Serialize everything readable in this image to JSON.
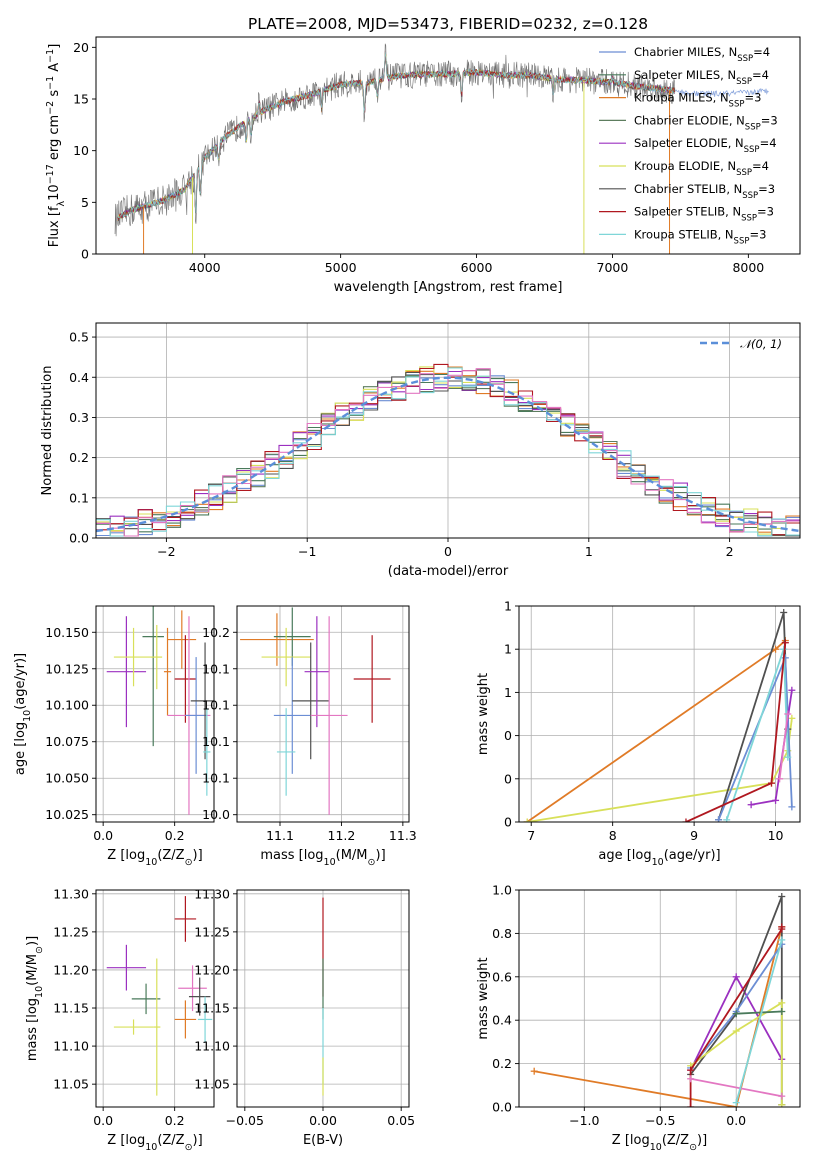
{
  "figure": {
    "title": "PLATE=2008, MJD=53473, FIBERID=0232, z=0.128"
  },
  "chart_data": [
    {
      "id": "spectrum",
      "type": "line",
      "xlabel": "wavelength [Angstrom, rest frame]",
      "ylabel": "Flux [f",
      "ylabel_parts": {
        "a": "Flux [f",
        "sub": "λ",
        "b": "10",
        "sup1": "−17",
        "c": " erg cm",
        "sup2": "−2",
        "d": " s",
        "sup3": "−1",
        "e": " A",
        "sup4": "−1",
        "f": "]"
      },
      "xlim": [
        3200,
        8380
      ],
      "ylim": [
        0,
        21
      ],
      "xticks": [
        4000,
        5000,
        6000,
        7000,
        8000
      ],
      "yticks": [
        0,
        5,
        10,
        15,
        20
      ],
      "legend_position": "right",
      "observed_envelope": {
        "wavelength": [
          3340,
          3450,
          3550,
          3700,
          3850,
          4000,
          4150,
          4300,
          4450,
          4600,
          4800,
          5000,
          5200,
          5400,
          5600,
          5800,
          6000,
          6200,
          6400,
          6600,
          6800,
          7000,
          7200,
          7400,
          7600,
          7800,
          8000,
          8150
        ],
        "flux": [
          3.3,
          4.2,
          4.6,
          5.2,
          6.2,
          9.3,
          11.3,
          12.8,
          14.0,
          14.8,
          15.5,
          16.4,
          16.6,
          17.2,
          17.4,
          17.4,
          17.6,
          17.3,
          17.3,
          16.9,
          16.8,
          16.6,
          16.2,
          15.9,
          15.5,
          15.5,
          15.6,
          15.8
        ]
      },
      "models": [
        {
          "name": "Chabrier MILES",
          "n_ssp": "4",
          "color": "#6c8ed4"
        },
        {
          "name": "Salpeter MILES",
          "n_ssp": "4",
          "color": "#4a7a5b"
        },
        {
          "name": "Kroupa MILES",
          "n_ssp": "3",
          "color": "#e07b27"
        },
        {
          "name": "Chabrier ELODIE",
          "n_ssp": "3",
          "color": "#5d7d5f"
        },
        {
          "name": "Salpeter ELODIE",
          "n_ssp": "4",
          "color": "#9b30c0"
        },
        {
          "name": "Kroupa ELODIE",
          "n_ssp": "4",
          "color": "#d8e05a"
        },
        {
          "name": "Chabrier STELIB",
          "n_ssp": "3",
          "color": "#505050"
        },
        {
          "name": "Salpeter STELIB",
          "n_ssp": "3",
          "color": "#b01820"
        },
        {
          "name": "Kroupa STELIB",
          "n_ssp": "3",
          "color": "#7fd6d8"
        }
      ],
      "legend_ssp_label": "N",
      "legend_ssp_sub": "SSP"
    },
    {
      "id": "residuals",
      "type": "histogram",
      "xlabel": "(data-model)/error",
      "ylabel": "Normed distribution",
      "xlim": [
        -2.5,
        2.5
      ],
      "ylim": [
        0,
        0.535
      ],
      "xticks": [
        -2,
        -1,
        0,
        1,
        2
      ],
      "yticks": [
        0.0,
        0.1,
        0.2,
        0.3,
        0.4,
        0.5
      ],
      "bin_width": 0.1,
      "reference": {
        "label": "𝒩(0, 1)",
        "mean": 0,
        "sigma": 1,
        "color": "#5b8fd9"
      },
      "legend_position": "top-right"
    },
    {
      "id": "age_vs_Z",
      "type": "errorbar",
      "xlabel": "Z [log",
      "xlabel_parts": {
        "a": "Z [log",
        "sub": "10",
        "b": "(Z/Z",
        "sub2": "⊙",
        "c": ")]"
      },
      "ylabel_parts": {
        "a": "age  [log",
        "sub": "10",
        "b": "(age/yr)]"
      },
      "xlim": [
        -0.02,
        0.31
      ],
      "ylim": [
        10.02,
        10.168
      ],
      "xticks": [
        0.0,
        0.2
      ],
      "yticks": [
        10.025,
        10.05,
        10.075,
        10.1,
        10.125,
        10.15
      ],
      "points": [
        {
          "x": 0.065,
          "y": 10.123,
          "xerr": 0.055,
          "yerr": 0.038,
          "color": "#9b30c0"
        },
        {
          "x": 0.085,
          "y": 10.133,
          "xerr": 0.055,
          "yerr": 0.02,
          "color": "#d8e05a"
        },
        {
          "x": 0.14,
          "y": 10.147,
          "xerr": 0.03,
          "yerr": 0.075,
          "color": "#4a7a5b"
        },
        {
          "x": 0.15,
          "y": 10.133,
          "xerr": 0.015,
          "yerr": 0.022,
          "color": "#d8e05a"
        },
        {
          "x": 0.18,
          "y": 10.123,
          "xerr": 0.01,
          "yerr": 0.03,
          "color": "#e07b27"
        },
        {
          "x": 0.22,
          "y": 10.145,
          "xerr": 0.04,
          "yerr": 0.02,
          "color": "#e07b27"
        },
        {
          "x": 0.23,
          "y": 10.118,
          "xerr": 0.03,
          "yerr": 0.03,
          "color": "#b01820"
        },
        {
          "x": 0.24,
          "y": 10.093,
          "xerr": 0.06,
          "yerr": 0.068,
          "color": "#e377c2"
        },
        {
          "x": 0.26,
          "y": 10.093,
          "xerr": 0.03,
          "yerr": 0.04,
          "color": "#6c8ed4"
        },
        {
          "x": 0.285,
          "y": 10.103,
          "xerr": 0.04,
          "yerr": 0.04,
          "color": "#505050"
        },
        {
          "x": 0.29,
          "y": 10.068,
          "xerr": 0.01,
          "yerr": 0.03,
          "color": "#7fd6d8"
        }
      ]
    },
    {
      "id": "age_vs_mass",
      "type": "errorbar",
      "xlabel_parts": {
        "a": "mass [log",
        "sub": "10",
        "b": "(M/M",
        "sub2": "⊙",
        "c": ")]"
      },
      "xlim": [
        11.03,
        11.31
      ],
      "ylim": [
        10.02,
        10.168
      ],
      "xticks": [
        11.1,
        11.2,
        11.3
      ],
      "yticks": [
        10.025,
        10.05,
        10.075,
        10.1,
        10.125,
        10.15
      ],
      "points": [
        {
          "x": 11.095,
          "y": 10.145,
          "xerr": 0.06,
          "yerr": 0.018,
          "color": "#e07b27"
        },
        {
          "x": 11.12,
          "y": 10.147,
          "xerr": 0.03,
          "yerr": 0.02,
          "color": "#4a7a5b"
        },
        {
          "x": 11.11,
          "y": 10.133,
          "xerr": 0.04,
          "yerr": 0.02,
          "color": "#d8e05a"
        },
        {
          "x": 11.12,
          "y": 10.093,
          "xerr": 0.03,
          "yerr": 0.04,
          "color": "#6c8ed4"
        },
        {
          "x": 11.11,
          "y": 10.068,
          "xerr": 0.015,
          "yerr": 0.03,
          "color": "#7fd6d8"
        },
        {
          "x": 11.15,
          "y": 10.103,
          "xerr": 0.03,
          "yerr": 0.04,
          "color": "#505050"
        },
        {
          "x": 11.16,
          "y": 10.123,
          "xerr": 0.02,
          "yerr": 0.038,
          "color": "#9b30c0"
        },
        {
          "x": 11.18,
          "y": 10.093,
          "xerr": 0.03,
          "yerr": 0.068,
          "color": "#e377c2"
        },
        {
          "x": 11.25,
          "y": 10.118,
          "xerr": 0.03,
          "yerr": 0.03,
          "color": "#b01820"
        }
      ]
    },
    {
      "id": "weight_vs_age",
      "type": "line",
      "xlabel_parts": {
        "a": "age  [log",
        "sub": "10",
        "b": "(age/yr)]"
      },
      "ylabel": "mass weight",
      "xlim": [
        6.85,
        10.3
      ],
      "ylim": [
        0,
        1
      ],
      "xticks": [
        7,
        8,
        9,
        10
      ],
      "yticks": [
        0.0,
        0.2,
        0.4,
        0.6,
        0.8,
        1.0
      ],
      "series": [
        {
          "color": "#e07b27",
          "x": [
            6.95,
            10.0,
            10.12
          ],
          "y": [
            0.0,
            0.8,
            0.84
          ]
        },
        {
          "color": "#d8e05a",
          "x": [
            6.95,
            9.95,
            10.15,
            10.2
          ],
          "y": [
            0.0,
            0.18,
            0.33,
            0.48
          ]
        },
        {
          "color": "#505050",
          "x": [
            9.3,
            10.1,
            10.15
          ],
          "y": [
            0.01,
            0.97,
            0.43
          ]
        },
        {
          "color": "#6c8ed4",
          "x": [
            9.3,
            10.12,
            10.2
          ],
          "y": [
            0.01,
            0.76,
            0.07
          ]
        },
        {
          "color": "#7fd6d8",
          "x": [
            9.4,
            10.1,
            10.15
          ],
          "y": [
            0.01,
            0.8,
            0.3
          ]
        },
        {
          "color": "#9b30c0",
          "x": [
            9.7,
            10.0,
            10.2
          ],
          "y": [
            0.08,
            0.1,
            0.61
          ]
        },
        {
          "color": "#b01820",
          "x": [
            8.9,
            9.95,
            10.12
          ],
          "y": [
            0.0,
            0.18,
            0.83
          ]
        },
        {
          "color": "#e377c2",
          "x": [
            10.05,
            10.15
          ],
          "y": [
            0.2,
            0.5
          ]
        }
      ]
    },
    {
      "id": "mass_vs_Z",
      "type": "errorbar",
      "xlabel_parts": {
        "a": "Z [log",
        "sub": "10",
        "b": "(Z/Z",
        "sub2": "⊙",
        "c": ")]"
      },
      "ylabel_parts": {
        "a": "mass [log",
        "sub": "10",
        "b": "(M/M",
        "sub2": "⊙",
        "c": ")]"
      },
      "xlim": [
        -0.02,
        0.31
      ],
      "ylim": [
        11.02,
        11.305
      ],
      "xticks": [
        0.0,
        0.2
      ],
      "yticks": [
        11.05,
        11.1,
        11.15,
        11.2,
        11.25,
        11.3
      ],
      "points": [
        {
          "x": 0.065,
          "y": 11.203,
          "xerr": 0.055,
          "yerr": 0.03,
          "color": "#9b30c0"
        },
        {
          "x": 0.085,
          "y": 11.125,
          "xerr": 0.055,
          "yerr": 0.01,
          "color": "#d8e05a"
        },
        {
          "x": 0.12,
          "y": 11.162,
          "xerr": 0.04,
          "yerr": 0.02,
          "color": "#4a7a5b"
        },
        {
          "x": 0.15,
          "y": 11.125,
          "xerr": 0.01,
          "yerr": 0.09,
          "color": "#d8e05a"
        },
        {
          "x": 0.23,
          "y": 11.267,
          "xerr": 0.03,
          "yerr": 0.03,
          "color": "#b01820"
        },
        {
          "x": 0.23,
          "y": 11.135,
          "xerr": 0.03,
          "yerr": 0.025,
          "color": "#e07b27"
        },
        {
          "x": 0.25,
          "y": 11.176,
          "xerr": 0.04,
          "yerr": 0.03,
          "color": "#e377c2"
        },
        {
          "x": 0.27,
          "y": 11.165,
          "xerr": 0.03,
          "yerr": 0.025,
          "color": "#505050"
        },
        {
          "x": 0.285,
          "y": 11.135,
          "xerr": 0.02,
          "yerr": 0.03,
          "color": "#7fd6d8"
        }
      ]
    },
    {
      "id": "mass_vs_ebv",
      "type": "errorbar",
      "xlabel": "E(B-V)",
      "xlim": [
        -0.055,
        0.055
      ],
      "ylim": [
        11.02,
        11.305
      ],
      "xticks": [
        -0.05,
        0.0,
        0.05
      ],
      "yticks": [
        11.05,
        11.1,
        11.15,
        11.2,
        11.25,
        11.3
      ],
      "points": [
        {
          "x": 0.0,
          "y": 11.23,
          "xerr": 0,
          "yerr": 0.065,
          "color": "#b01820"
        },
        {
          "x": 0.0,
          "y": 11.175,
          "xerr": 0,
          "yerr": 0.04,
          "color": "#4a7a5b"
        },
        {
          "x": 0.0,
          "y": 11.1,
          "xerr": 0,
          "yerr": 0.05,
          "color": "#7fd6d8"
        },
        {
          "x": 0.0,
          "y": 11.06,
          "xerr": 0,
          "yerr": 0.025,
          "color": "#d8e05a"
        }
      ]
    },
    {
      "id": "weight_vs_Z",
      "type": "line",
      "xlabel_parts": {
        "a": "Z [log",
        "sub": "10",
        "b": "(Z/Z",
        "sub2": "⊙",
        "c": ")]"
      },
      "ylabel": "mass weight",
      "xlim": [
        -1.43,
        0.42
      ],
      "ylim": [
        0,
        1
      ],
      "xticks": [
        -1.0,
        -0.5,
        0.0
      ],
      "yticks": [
        0.0,
        0.2,
        0.4,
        0.6,
        0.8,
        1.0
      ],
      "series": [
        {
          "color": "#e07b27",
          "x": [
            -1.33,
            0.0,
            0.3
          ],
          "y": [
            0.165,
            0.0,
            0.83
          ]
        },
        {
          "color": "#9b30c0",
          "x": [
            -0.3,
            0.0,
            0.3
          ],
          "y": [
            0.17,
            0.6,
            0.22
          ]
        },
        {
          "color": "#505050",
          "x": [
            -0.3,
            0.0,
            0.3,
            0.3
          ],
          "y": [
            0.15,
            0.43,
            0.97,
            0.01
          ]
        },
        {
          "color": "#6c8ed4",
          "x": [
            -0.3,
            0.0,
            0.3
          ],
          "y": [
            0.18,
            0.44,
            0.75
          ]
        },
        {
          "color": "#d8e05a",
          "x": [
            -0.3,
            0.0,
            0.3,
            0.3
          ],
          "y": [
            0.19,
            0.35,
            0.48,
            0.01
          ]
        },
        {
          "color": "#b01820",
          "x": [
            -0.3,
            -0.3,
            0.3,
            0.3
          ],
          "y": [
            0.0,
            0.17,
            0.82,
            0.83
          ]
        },
        {
          "color": "#e377c2",
          "x": [
            -0.3,
            0.3
          ],
          "y": [
            0.13,
            0.05
          ]
        },
        {
          "color": "#4a7a5b",
          "x": [
            0.0,
            0.3
          ],
          "y": [
            0.43,
            0.44
          ]
        },
        {
          "color": "#7fd6d8",
          "x": [
            0.0,
            0.3
          ],
          "y": [
            0.02,
            0.77
          ]
        }
      ]
    }
  ]
}
